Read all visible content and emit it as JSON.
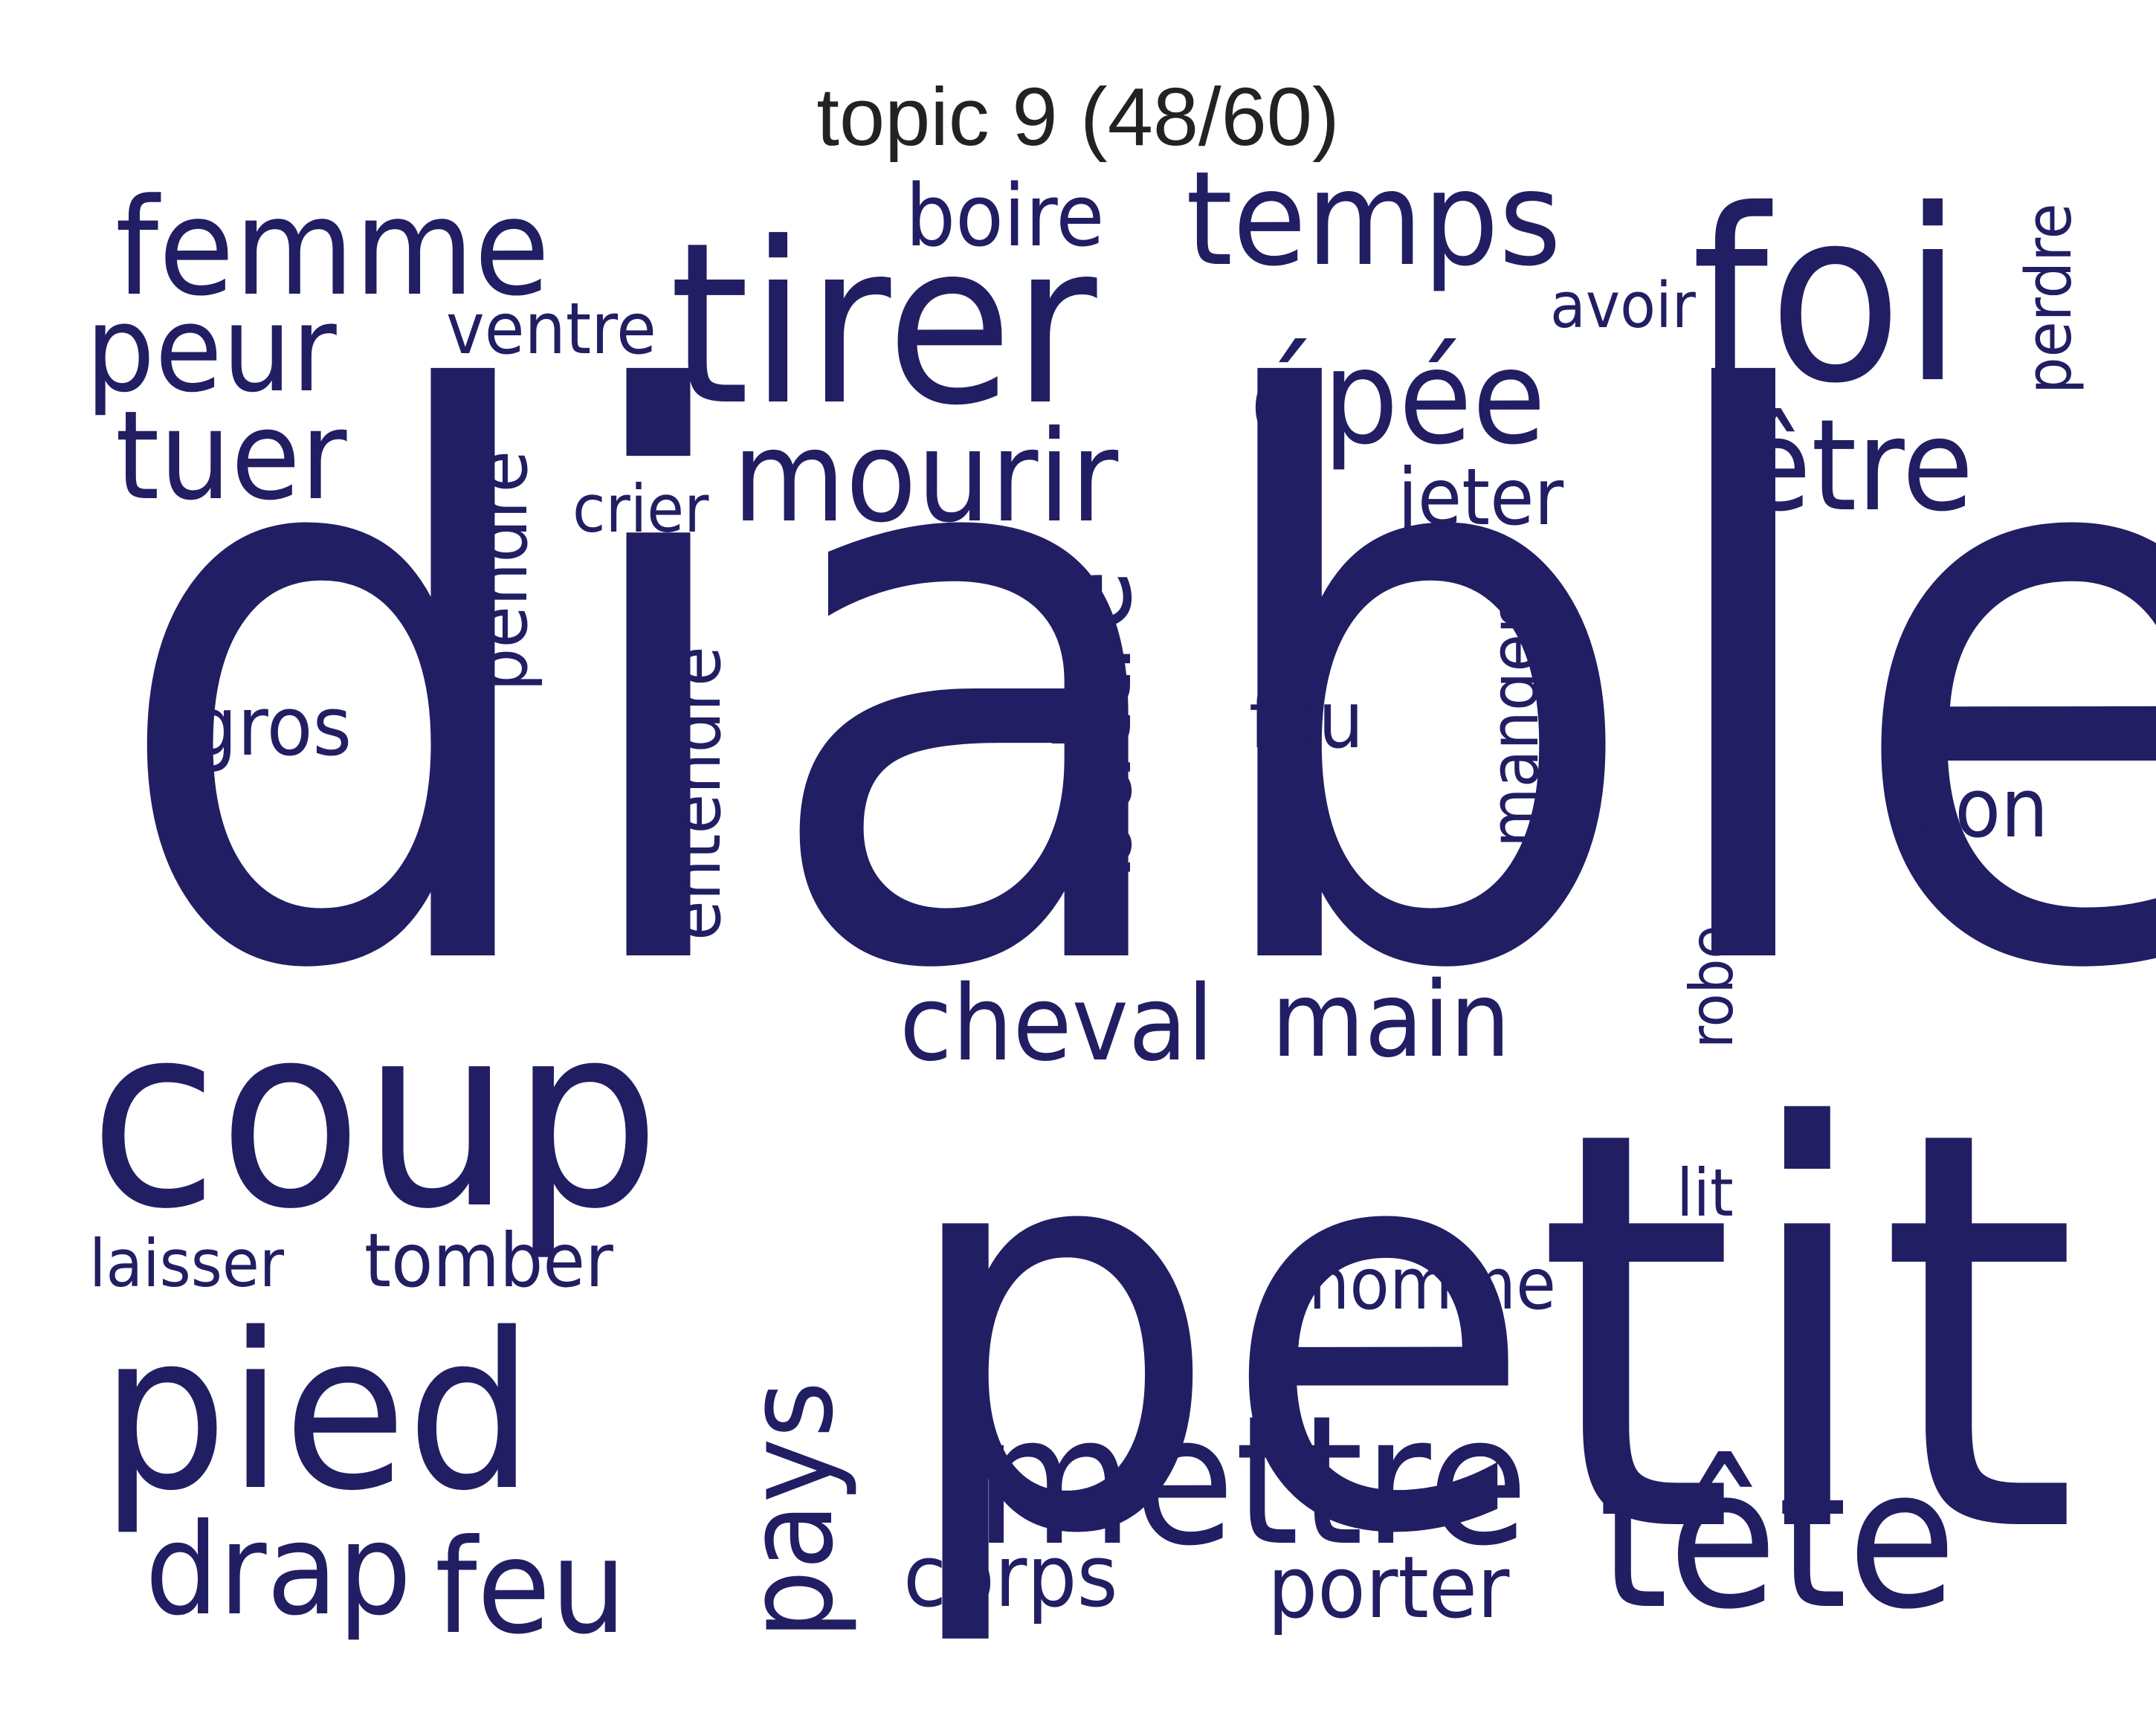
{
  "title": "topic 9 (48/60)",
  "colors": {
    "word": "#221E63",
    "title": "#222222",
    "background": "#FFFFFF"
  },
  "words": [
    {
      "text": "diable",
      "weight": 100,
      "orientation": "horizontal"
    },
    {
      "text": "petit",
      "weight": 72,
      "orientation": "horizontal"
    },
    {
      "text": "coup",
      "weight": 52,
      "orientation": "horizontal"
    },
    {
      "text": "tirer",
      "weight": 46,
      "orientation": "horizontal"
    },
    {
      "text": "foi",
      "weight": 44,
      "orientation": "horizontal"
    },
    {
      "text": "pied",
      "weight": 40,
      "orientation": "horizontal"
    },
    {
      "text": "tête",
      "weight": 36,
      "orientation": "horizontal"
    },
    {
      "text": "mettre",
      "weight": 33,
      "orientation": "horizontal"
    },
    {
      "text": "femme",
      "weight": 26,
      "orientation": "horizontal"
    },
    {
      "text": "temps",
      "weight": 26,
      "orientation": "horizontal"
    },
    {
      "text": "épée",
      "weight": 24,
      "orientation": "horizontal"
    },
    {
      "text": "feu",
      "weight": 24,
      "orientation": "horizontal"
    },
    {
      "text": "drap",
      "weight": 22,
      "orientation": "horizontal"
    },
    {
      "text": "pays",
      "weight": 22,
      "orientation": "vertical"
    },
    {
      "text": "mourir",
      "weight": 21,
      "orientation": "horizontal"
    },
    {
      "text": "tuer",
      "weight": 20,
      "orientation": "horizontal"
    },
    {
      "text": "peur",
      "weight": 20,
      "orientation": "horizontal"
    },
    {
      "text": "être",
      "weight": 20,
      "orientation": "horizontal"
    },
    {
      "text": "battre",
      "weight": 19,
      "orientation": "vertical"
    },
    {
      "text": "main",
      "weight": 18,
      "orientation": "horizontal"
    },
    {
      "text": "cheval",
      "weight": 17,
      "orientation": "horizontal"
    },
    {
      "text": "porter",
      "weight": 14,
      "orientation": "horizontal"
    },
    {
      "text": "corps",
      "weight": 14,
      "orientation": "horizontal"
    },
    {
      "text": "boire",
      "weight": 14,
      "orientation": "horizontal"
    },
    {
      "text": "pendre",
      "weight": 13,
      "orientation": "vertical"
    },
    {
      "text": "tomber",
      "weight": 13,
      "orientation": "horizontal"
    },
    {
      "text": "bon",
      "weight": 13,
      "orientation": "horizontal"
    },
    {
      "text": "gros",
      "weight": 13,
      "orientation": "horizontal"
    },
    {
      "text": "jeter",
      "weight": 12,
      "orientation": "horizontal"
    },
    {
      "text": "entendre",
      "weight": 12,
      "orientation": "vertical"
    },
    {
      "text": "ventre",
      "weight": 11,
      "orientation": "horizontal"
    },
    {
      "text": "manger",
      "weight": 11,
      "orientation": "vertical"
    },
    {
      "text": "fou",
      "weight": 11,
      "orientation": "horizontal"
    },
    {
      "text": "homme",
      "weight": 11,
      "orientation": "horizontal"
    },
    {
      "text": "perdre",
      "weight": 11,
      "orientation": "vertical"
    },
    {
      "text": "laisser",
      "weight": 10,
      "orientation": "horizontal"
    },
    {
      "text": "crier",
      "weight": 10,
      "orientation": "horizontal"
    },
    {
      "text": "avoir",
      "weight": 10,
      "orientation": "horizontal"
    },
    {
      "text": "robe",
      "weight": 10,
      "orientation": "vertical"
    },
    {
      "text": "lit",
      "weight": 10,
      "orientation": "horizontal"
    }
  ]
}
